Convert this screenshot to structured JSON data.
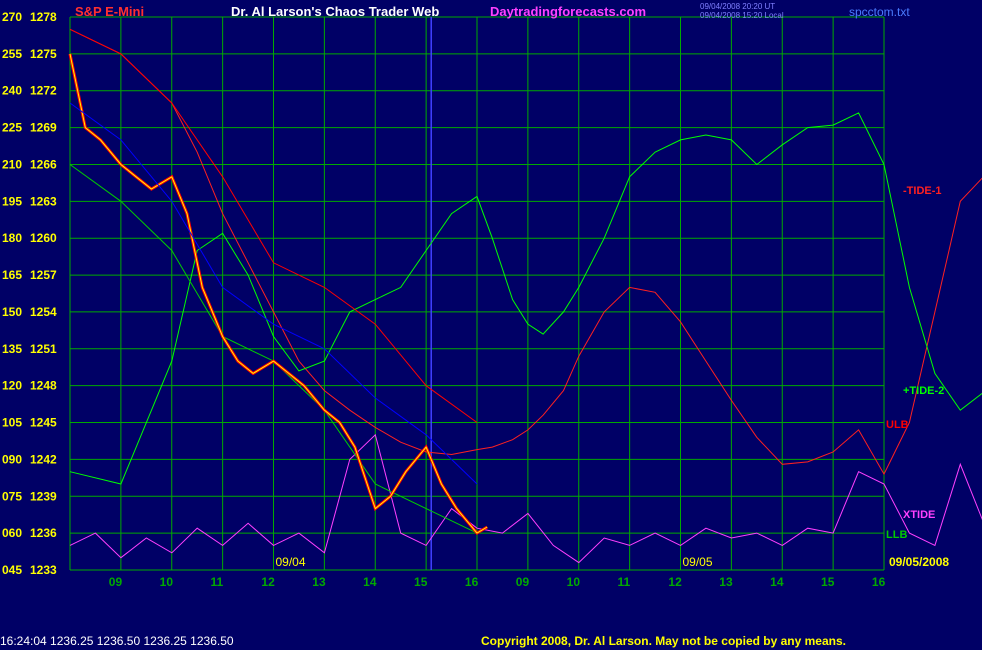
{
  "header": {
    "symbol": "S&P E-Mini",
    "title": "Dr. Al Larson's Chaos Trader Web",
    "site": "Daytradingforecasts.com",
    "timestamp_1": "09/04/2008 20:20 UT",
    "timestamp_2": "09/04/2008 15:20 Local",
    "file": "spcctom.txt"
  },
  "footer": {
    "quote": "16:24:04  1236.25  1236.50  1236.25  1236.50",
    "copyright": "Copyright 2008, Dr. Al Larson. May not be copied by any means."
  },
  "colors": {
    "background": "#000066",
    "grid": "#00aa00",
    "price": "#ff0000",
    "tide1": "#ff2020",
    "tide2": "#00ff00",
    "xtide": "#ff40ff",
    "ulb": "#ff0000",
    "llb": "#00cc00",
    "yellow_avg": "#ffff00",
    "blue_line": "#0000ff",
    "axis_text": "#ffff00"
  },
  "chart_data": {
    "type": "line",
    "x_ticks": [
      "09",
      "10",
      "11",
      "12",
      "13",
      "14",
      "15",
      "16",
      "09",
      "10",
      "11",
      "12",
      "13",
      "14",
      "15",
      "16"
    ],
    "day_labels": [
      "09/04",
      "09/05"
    ],
    "date_label": "09/05/2008",
    "y_left_oscillator_ticks": [
      "270",
      "255",
      "240",
      "225",
      "210",
      "195",
      "180",
      "165",
      "150",
      "135",
      "120",
      "105",
      "090",
      "075",
      "060",
      "045"
    ],
    "y_left_price_ticks": [
      "1278",
      "1275",
      "1272",
      "1269",
      "1266",
      "1263",
      "1260",
      "1257",
      "1254",
      "1251",
      "1248",
      "1245",
      "1242",
      "1239",
      "1236",
      "1233"
    ],
    "ylim_price": [
      1233,
      1278
    ],
    "ylim_oscillator": [
      45,
      270
    ],
    "grid": true,
    "series_labels": [
      "-TIDE-1",
      "+TIDE-2",
      "ULB",
      "XTIDE",
      "LLB"
    ],
    "series": [
      {
        "name": "-TIDE-1",
        "axis": "oscillator",
        "x": [
          8,
          9,
          10,
          10.5,
          11,
          11.5,
          12,
          12.5,
          13,
          13.5,
          14,
          14.5,
          15,
          15.5,
          16,
          16.3,
          16.7,
          17,
          17.3,
          17.7,
          18,
          18.5,
          19,
          19.5,
          20,
          20.5,
          21,
          21.5,
          22,
          22.5,
          23,
          23.5,
          24,
          24.5,
          25,
          25.5,
          26
        ],
        "y": [
          265,
          255,
          235,
          215,
          190,
          170,
          150,
          130,
          118,
          110,
          103,
          97,
          93,
          92,
          94,
          95,
          98,
          102,
          108,
          118,
          132,
          150,
          160,
          158,
          146,
          130,
          114,
          99,
          88,
          89,
          93,
          102,
          84,
          105,
          150,
          195,
          206
        ]
      },
      {
        "name": "+TIDE-2",
        "axis": "oscillator",
        "x": [
          8,
          9,
          10,
          10.5,
          11,
          11.5,
          12,
          12.5,
          13,
          13.5,
          14,
          14.5,
          15,
          15.5,
          16,
          16.3,
          16.7,
          17,
          17.3,
          17.7,
          18,
          18.5,
          19,
          19.5,
          20,
          20.5,
          21,
          21.5,
          22,
          22.5,
          23,
          23.5,
          24,
          24.5,
          25,
          25.5,
          26
        ],
        "y": [
          85,
          80,
          130,
          175,
          182,
          165,
          140,
          126,
          130,
          150,
          155,
          160,
          175,
          190,
          197,
          180,
          155,
          145,
          141,
          150,
          160,
          180,
          205,
          215,
          220,
          222,
          220,
          210,
          218,
          225,
          226,
          231,
          210,
          160,
          125,
          110,
          118
        ]
      },
      {
        "name": "XTIDE",
        "axis": "oscillator",
        "x": [
          8,
          8.5,
          9,
          9.5,
          10,
          10.5,
          11,
          11.5,
          12,
          12.5,
          13,
          13.5,
          14,
          14.5,
          15,
          15.5,
          16,
          16.5,
          17,
          17.5,
          18,
          18.5,
          19,
          19.5,
          20,
          20.5,
          21,
          21.5,
          22,
          22.5,
          23,
          23.5,
          24,
          24.5,
          25,
          25.5,
          26
        ],
        "y": [
          55,
          60,
          50,
          58,
          52,
          62,
          55,
          64,
          55,
          60,
          52,
          90,
          100,
          60,
          55,
          70,
          62,
          60,
          68,
          55,
          48,
          58,
          55,
          60,
          55,
          62,
          58,
          60,
          55,
          62,
          60,
          85,
          80,
          60,
          55,
          88,
          62
        ]
      },
      {
        "name": "ULB",
        "axis": "price",
        "x": [
          8,
          9,
          10,
          11,
          12,
          13,
          14,
          15,
          16
        ],
        "y": [
          1277,
          1275,
          1271,
          1265,
          1258,
          1256,
          1253,
          1248,
          1245
        ]
      },
      {
        "name": "LLB",
        "axis": "price",
        "x": [
          8,
          9,
          10,
          11,
          12,
          13,
          14,
          15,
          16
        ],
        "y": [
          1266,
          1263,
          1259,
          1252,
          1250,
          1246,
          1240,
          1238,
          1236
        ]
      },
      {
        "name": "",
        "role": "price-close",
        "axis": "price",
        "x": [
          8,
          8.3,
          8.6,
          9,
          9.3,
          9.6,
          10,
          10.3,
          10.6,
          11,
          11.3,
          11.6,
          12,
          12.3,
          12.6,
          13,
          13.3,
          13.6,
          14,
          14.3,
          14.6,
          15,
          15.3,
          15.6,
          16,
          16.2
        ],
        "y": [
          1275,
          1269,
          1268,
          1266,
          1265,
          1264,
          1265,
          1262,
          1256,
          1252,
          1250,
          1249,
          1250,
          1249,
          1248,
          1246,
          1245,
          1243,
          1238,
          1239,
          1241,
          1243,
          1240,
          1238,
          1236,
          1236.5
        ]
      },
      {
        "name": "",
        "role": "blue-avg",
        "axis": "price",
        "x": [
          8,
          9,
          10,
          11,
          12,
          13,
          14,
          15,
          16
        ],
        "y": [
          1271,
          1268,
          1263,
          1256,
          1253,
          1251,
          1247,
          1244,
          1240
        ]
      }
    ]
  }
}
